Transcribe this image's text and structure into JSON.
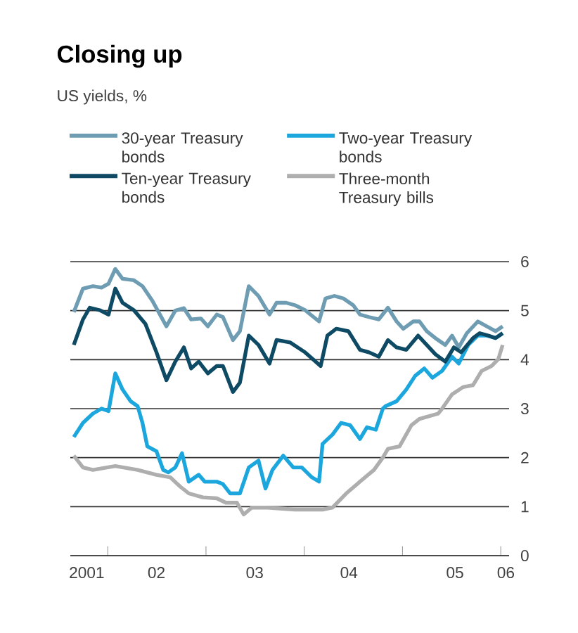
{
  "chart_data": {
    "type": "line",
    "title": "Closing up",
    "subtitle": "US yields, %",
    "xlim": [
      "2001-08-15",
      "2006-02-01"
    ],
    "ylim": [
      0,
      6
    ],
    "yticks": [
      0,
      1,
      2,
      3,
      4,
      5,
      6
    ],
    "xticks": [
      {
        "value": "2001-10-15",
        "label": "2001"
      },
      {
        "value": "2002-01-01",
        "label": null
      },
      {
        "value": "2002-07-01",
        "label": "02"
      },
      {
        "value": "2003-01-01",
        "label": null
      },
      {
        "value": "2003-07-01",
        "label": "03"
      },
      {
        "value": "2004-01-01",
        "label": null
      },
      {
        "value": "2004-06-15",
        "label": "04"
      },
      {
        "value": "2005-01-01",
        "label": null
      },
      {
        "value": "2005-07-15",
        "label": "05"
      },
      {
        "value": "2006-01-01",
        "label": null
      },
      {
        "value": "2006-01-20",
        "label": "06"
      }
    ],
    "grid": "y",
    "legend": "top",
    "marker": "none",
    "line_style": "solid",
    "series": [
      {
        "name": "30-year Treasury bonds",
        "color": "#6e9db3",
        "x": [
          "2001-08-28",
          "2001-10-01",
          "2001-11-07",
          "2001-12-09",
          "2002-01-04",
          "2002-01-29",
          "2002-02-25",
          "2002-04-08",
          "2002-05-10",
          "2002-06-16",
          "2002-08-07",
          "2002-09-09",
          "2002-10-11",
          "2002-11-07",
          "2002-12-13",
          "2003-01-08",
          "2003-02-10",
          "2003-03-05",
          "2003-04-11",
          "2003-05-07",
          "2003-06-09",
          "2003-07-15",
          "2003-08-25",
          "2003-09-20",
          "2003-10-26",
          "2003-11-28",
          "2004-01-04",
          "2004-02-25",
          "2004-03-20",
          "2004-04-22",
          "2004-05-25",
          "2004-07-01",
          "2004-07-26",
          "2004-08-28",
          "2004-10-04",
          "2004-11-07",
          "2004-12-09",
          "2005-01-04",
          "2005-02-10",
          "2005-03-05",
          "2005-04-01",
          "2005-05-03",
          "2005-06-09",
          "2005-07-04",
          "2005-07-29",
          "2005-08-28",
          "2005-10-08",
          "2005-11-10",
          "2005-12-13",
          "2006-01-08"
        ],
        "values": [
          4.97,
          5.45,
          5.5,
          5.47,
          5.55,
          5.85,
          5.65,
          5.62,
          5.5,
          5.2,
          4.68,
          5.0,
          5.05,
          4.82,
          4.84,
          4.68,
          4.92,
          4.87,
          4.4,
          4.58,
          5.5,
          5.3,
          4.92,
          5.16,
          5.16,
          5.11,
          5.01,
          4.78,
          5.25,
          5.3,
          5.25,
          5.11,
          4.92,
          4.87,
          4.82,
          5.06,
          4.78,
          4.63,
          4.78,
          4.78,
          4.58,
          4.44,
          4.3,
          4.49,
          4.25,
          4.54,
          4.78,
          4.68,
          4.58,
          4.68
        ]
      },
      {
        "name": "Two-year Treasury bonds",
        "color": "#1ba7de",
        "x": [
          "2001-08-28",
          "2001-10-01",
          "2001-11-07",
          "2001-12-09",
          "2002-01-04",
          "2002-01-29",
          "2002-02-25",
          "2002-03-27",
          "2002-04-22",
          "2002-05-10",
          "2002-05-28",
          "2002-07-01",
          "2002-07-26",
          "2002-08-14",
          "2002-09-09",
          "2002-10-04",
          "2002-10-29",
          "2002-12-05",
          "2002-12-27",
          "2003-02-10",
          "2003-03-05",
          "2003-04-01",
          "2003-05-07",
          "2003-06-09",
          "2003-07-15",
          "2003-08-10",
          "2003-09-05",
          "2003-10-15",
          "2003-11-21",
          "2003-12-23",
          "2004-01-29",
          "2004-02-25",
          "2004-03-09",
          "2004-04-15",
          "2004-05-17",
          "2004-06-20",
          "2004-07-26",
          "2004-08-21",
          "2004-09-23",
          "2004-10-19",
          "2004-10-29",
          "2004-12-09",
          "2005-01-15",
          "2005-02-17",
          "2005-03-23",
          "2005-04-22",
          "2005-05-28",
          "2005-07-04",
          "2005-07-29",
          "2005-09-02",
          "2005-10-08",
          "2005-11-10",
          "2005-12-13",
          "2006-01-08"
        ],
        "values": [
          2.42,
          2.71,
          2.9,
          3.0,
          2.95,
          3.72,
          3.39,
          3.15,
          3.05,
          2.71,
          2.23,
          2.13,
          1.75,
          1.7,
          1.8,
          2.09,
          1.51,
          1.65,
          1.51,
          1.51,
          1.46,
          1.27,
          1.27,
          1.8,
          1.94,
          1.37,
          1.75,
          2.04,
          1.8,
          1.8,
          1.6,
          1.51,
          2.28,
          2.47,
          2.71,
          2.66,
          2.38,
          2.62,
          2.57,
          3.0,
          3.05,
          3.15,
          3.39,
          3.67,
          3.82,
          3.63,
          3.77,
          4.06,
          3.92,
          4.3,
          4.49,
          4.49,
          4.44,
          4.54
        ]
      },
      {
        "name": "Ten-year Treasury bonds",
        "color": "#0e4a64",
        "x": [
          "2001-08-28",
          "2001-10-01",
          "2001-10-26",
          "2001-12-02",
          "2002-01-04",
          "2002-01-29",
          "2002-02-25",
          "2002-04-08",
          "2002-05-21",
          "2002-07-01",
          "2002-08-07",
          "2002-09-09",
          "2002-10-11",
          "2002-11-07",
          "2002-12-05",
          "2003-01-08",
          "2003-02-10",
          "2003-03-05",
          "2003-04-11",
          "2003-05-07",
          "2003-06-09",
          "2003-07-15",
          "2003-08-25",
          "2003-09-20",
          "2003-11-10",
          "2004-01-04",
          "2004-03-02",
          "2004-03-27",
          "2004-04-29",
          "2004-06-13",
          "2004-07-26",
          "2004-08-28",
          "2004-10-04",
          "2004-11-07",
          "2004-12-09",
          "2005-01-15",
          "2005-02-28",
          "2005-04-01",
          "2005-05-03",
          "2005-06-09",
          "2005-07-11",
          "2005-08-07",
          "2005-09-20",
          "2005-10-15",
          "2005-11-17",
          "2005-12-13",
          "2006-01-08"
        ],
        "values": [
          4.3,
          4.82,
          5.06,
          5.01,
          4.92,
          5.45,
          5.16,
          5.01,
          4.73,
          4.15,
          3.58,
          3.96,
          4.25,
          3.82,
          3.96,
          3.72,
          3.87,
          3.87,
          3.34,
          3.53,
          4.49,
          4.3,
          3.92,
          4.4,
          4.35,
          4.15,
          3.87,
          4.49,
          4.63,
          4.58,
          4.2,
          4.15,
          4.06,
          4.4,
          4.25,
          4.2,
          4.49,
          4.3,
          4.11,
          3.96,
          4.25,
          4.15,
          4.44,
          4.54,
          4.49,
          4.44,
          4.54
        ]
      },
      {
        "name": "Three-month Treasury bills",
        "color": "#aeaeae",
        "x": [
          "2001-08-28",
          "2001-10-01",
          "2001-11-07",
          "2002-01-29",
          "2002-04-22",
          "2002-07-01",
          "2002-08-21",
          "2002-09-27",
          "2002-10-29",
          "2002-12-20",
          "2003-02-10",
          "2003-03-16",
          "2003-04-26",
          "2003-05-21",
          "2003-06-20",
          "2003-08-17",
          "2003-11-28",
          "2004-03-09",
          "2004-04-15",
          "2004-06-05",
          "2004-07-26",
          "2004-09-16",
          "2004-10-19",
          "2004-11-07",
          "2004-12-20",
          "2005-02-03",
          "2005-03-05",
          "2005-05-14",
          "2005-05-28",
          "2005-07-04",
          "2005-08-14",
          "2005-09-20",
          "2005-10-22",
          "2005-11-28",
          "2005-12-23",
          "2006-01-08"
        ],
        "values": [
          2.04,
          1.8,
          1.75,
          1.83,
          1.75,
          1.65,
          1.6,
          1.41,
          1.27,
          1.19,
          1.17,
          1.08,
          1.08,
          0.84,
          0.98,
          0.98,
          0.94,
          0.94,
          0.98,
          1.27,
          1.51,
          1.75,
          2.0,
          2.18,
          2.23,
          2.66,
          2.79,
          2.9,
          3.0,
          3.29,
          3.44,
          3.48,
          3.77,
          3.87,
          4.01,
          4.3
        ]
      }
    ]
  }
}
